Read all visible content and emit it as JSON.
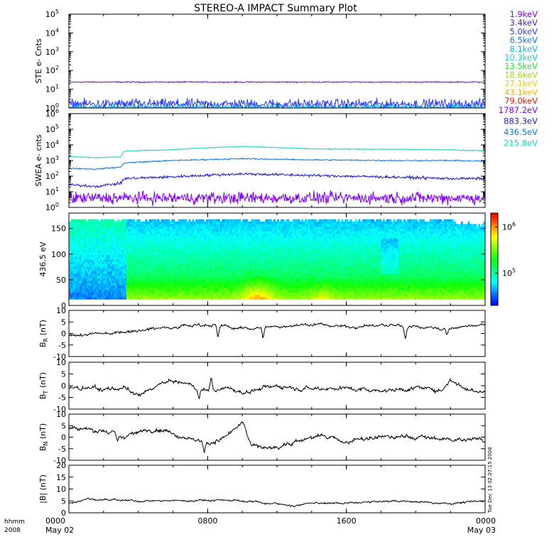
{
  "title": "STEREO-A IMPACT Summary Plot",
  "colors": {
    "spectrum": [
      "#7f00ff",
      "#4b1fd6",
      "#2a3cff",
      "#0a78ff",
      "#00b4ff",
      "#18d3c0",
      "#2fe02a",
      "#9cde12",
      "#e0d400",
      "#ffb000",
      "#e08000",
      "#e01e00"
    ]
  },
  "x_axis": {
    "range_hours": [
      0,
      24
    ],
    "tick_hours": [
      0,
      8,
      16,
      24
    ],
    "tick_labels": [
      "0000",
      "0800",
      "1600",
      "0000"
    ],
    "date_labels": [
      "May 02",
      "",
      "",
      "May 03"
    ],
    "left_label_1": "hhmm",
    "left_label_2": "2008"
  },
  "timestamp": "Tue Dec 13 02:07:15 2008",
  "chart_data": [
    {
      "type": "line",
      "name": "ste",
      "ylabel": "STE e- Cnts",
      "ylog": true,
      "ylim": [
        1,
        100000
      ],
      "y_ticks": [
        {
          "v": 1,
          "b": "10",
          "e": "0"
        },
        {
          "v": 10,
          "b": "10",
          "e": "1"
        },
        {
          "v": 100,
          "b": "10",
          "e": "2"
        },
        {
          "v": 1000,
          "b": "10",
          "e": "3"
        },
        {
          "v": 10000,
          "b": "10",
          "e": "4"
        },
        {
          "v": 100000,
          "b": "10",
          "e": "5"
        }
      ],
      "legend": [
        {
          "label": "1.9keV",
          "color": "#7f00ff"
        },
        {
          "label": "3.4keV",
          "color": "#4b1fd6"
        },
        {
          "label": "5.0keV",
          "color": "#2a3cff"
        },
        {
          "label": "6.5keV",
          "color": "#0a78ff"
        },
        {
          "label": "8.1keV",
          "color": "#00b4ff"
        },
        {
          "label": "10.3keV",
          "color": "#18d3c0"
        },
        {
          "label": "13.5keV",
          "color": "#2fe02a"
        },
        {
          "label": "18.6keV",
          "color": "#9cde12"
        },
        {
          "label": "27.1keV",
          "color": "#e0d400"
        },
        {
          "label": "43.1keV",
          "color": "#ffb000"
        },
        {
          "label": "79.0keV",
          "color": "#e01e00"
        }
      ],
      "series": [
        {
          "color": "#7f00ff",
          "base": [
            [
              0,
              24
            ],
            [
              24,
              24
            ]
          ],
          "noise_log": 0.03
        },
        {
          "color": "#2a3cff",
          "base": [
            [
              0,
              1.6
            ],
            [
              24,
              1.6
            ]
          ],
          "noise_log": 0.25
        },
        {
          "color": "#00b4ff",
          "base": [
            [
              0,
              1.1
            ],
            [
              24,
              1.1
            ]
          ],
          "noise_log": 0.12
        }
      ]
    },
    {
      "type": "line",
      "name": "swea",
      "ylabel": "SWEA e- cnts",
      "ylog": true,
      "ylim": [
        1,
        1000000
      ],
      "y_ticks": [
        {
          "v": 1,
          "b": "10",
          "e": "0"
        },
        {
          "v": 10,
          "b": "10",
          "e": "1"
        },
        {
          "v": 100,
          "b": "10",
          "e": "2"
        },
        {
          "v": 1000,
          "b": "10",
          "e": "3"
        },
        {
          "v": 10000,
          "b": "10",
          "e": "4"
        },
        {
          "v": 100000,
          "b": "10",
          "e": "5"
        },
        {
          "v": 1000000,
          "b": "10",
          "e": "6"
        }
      ],
      "legend": [
        {
          "label": "1787.2eV",
          "color": "#7f00ff"
        },
        {
          "label": "883.3eV",
          "color": "#2222cc"
        },
        {
          "label": "436.5eV",
          "color": "#0a78ff"
        },
        {
          "label": "215.8eV",
          "color": "#18d3c0"
        }
      ],
      "series": [
        {
          "color": "#18d3c0",
          "base": [
            [
              0,
              1800
            ],
            [
              1.6,
              1500
            ],
            [
              3,
              1800
            ],
            [
              3.2,
              4000
            ],
            [
              6,
              5000
            ],
            [
              10,
              8000
            ],
            [
              14,
              5500
            ],
            [
              19,
              5200
            ],
            [
              22,
              4800
            ],
            [
              24,
              4200
            ]
          ],
          "noise_log": 0.03
        },
        {
          "color": "#0a78ff",
          "base": [
            [
              0,
              320
            ],
            [
              1.6,
              280
            ],
            [
              3,
              380
            ],
            [
              3.2,
              700
            ],
            [
              6,
              1000
            ],
            [
              10,
              1300
            ],
            [
              14,
              1100
            ],
            [
              19,
              1000
            ],
            [
              22,
              1000
            ],
            [
              24,
              900
            ]
          ],
          "noise_log": 0.04
        },
        {
          "color": "#2222cc",
          "base": [
            [
              0,
              28
            ],
            [
              1.6,
              22
            ],
            [
              3,
              35
            ],
            [
              3.2,
              70
            ],
            [
              6,
              90
            ],
            [
              10,
              140
            ],
            [
              14,
              110
            ],
            [
              19,
              85
            ],
            [
              22,
              70
            ],
            [
              24,
              70
            ]
          ],
          "noise_log": 0.08
        },
        {
          "color": "#7f00ff",
          "base": [
            [
              0,
              4
            ],
            [
              24,
              4
            ]
          ],
          "noise_log": 0.35
        }
      ]
    },
    {
      "type": "heatmap",
      "name": "spec",
      "ylabel": "436.5 eV",
      "ylim": [
        0,
        180
      ],
      "y_ticks": [
        0,
        50,
        100,
        150
      ],
      "cbar_ticks": [
        {
          "v": 100000,
          "b": "10",
          "e": "5"
        },
        {
          "v": 1000000,
          "b": "10",
          "e": "6"
        }
      ],
      "cbar_range": [
        20000,
        2000000
      ]
    },
    {
      "type": "line",
      "name": "br",
      "ylabel_main": "B",
      "ylabel_sub": "R",
      "ylabel_unit": " (nT)",
      "ylim": [
        -10,
        10
      ],
      "y_ticks": [
        -10,
        -5,
        0,
        5,
        10
      ],
      "series": [
        {
          "color": "#000000",
          "base": [
            [
              0,
              -1
            ],
            [
              2,
              0
            ],
            [
              4,
              1.5
            ],
            [
              6,
              3
            ],
            [
              8,
              4
            ],
            [
              10,
              2
            ],
            [
              12,
              3
            ],
            [
              14,
              4
            ],
            [
              16,
              3
            ],
            [
              18,
              3.5
            ],
            [
              20,
              3
            ],
            [
              22,
              2
            ],
            [
              24,
              4
            ]
          ],
          "noise": 1.0,
          "dips": [
            [
              8.6,
              -5
            ],
            [
              11.2,
              -4
            ],
            [
              19.4,
              -5
            ],
            [
              21.8,
              -3
            ]
          ]
        }
      ]
    },
    {
      "type": "line",
      "name": "bt",
      "ylabel_main": "B",
      "ylabel_sub": "T",
      "ylabel_unit": " (nT)",
      "ylim": [
        -10,
        10
      ],
      "y_ticks": [
        -10,
        -5,
        0,
        5,
        10
      ],
      "series": [
        {
          "color": "#000000",
          "base": [
            [
              0,
              -1
            ],
            [
              2,
              -1.5
            ],
            [
              3.2,
              -1
            ],
            [
              4,
              -5
            ],
            [
              5,
              0
            ],
            [
              6,
              2
            ],
            [
              8,
              -2
            ],
            [
              9,
              -1
            ],
            [
              10,
              -3
            ],
            [
              12,
              0
            ],
            [
              14,
              -1
            ],
            [
              16,
              -1
            ],
            [
              18,
              -2
            ],
            [
              20,
              -1
            ],
            [
              21.5,
              -2
            ],
            [
              22,
              3
            ],
            [
              23,
              -2
            ],
            [
              24,
              -2
            ]
          ],
          "noise": 1.3,
          "dips": [
            [
              8.2,
              5
            ],
            [
              7.5,
              -4
            ]
          ]
        }
      ]
    },
    {
      "type": "line",
      "name": "bn",
      "ylabel_main": "B",
      "ylabel_sub": "N",
      "ylabel_unit": " (nT)",
      "ylim": [
        -10,
        10
      ],
      "y_ticks": [
        -10,
        -5,
        0,
        5,
        10
      ],
      "series": [
        {
          "color": "#000000",
          "base": [
            [
              0,
              4
            ],
            [
              2,
              3
            ],
            [
              3,
              0
            ],
            [
              5,
              4
            ],
            [
              6,
              2
            ],
            [
              8,
              -3
            ],
            [
              9,
              0
            ],
            [
              10,
              6
            ],
            [
              10.5,
              -3
            ],
            [
              11.5,
              -5
            ],
            [
              13,
              -2
            ],
            [
              14,
              0
            ],
            [
              15,
              0
            ],
            [
              16,
              -2
            ],
            [
              18,
              0
            ],
            [
              20,
              0
            ],
            [
              22,
              -1
            ],
            [
              24,
              -1
            ]
          ],
          "noise": 1.4,
          "dips": [
            [
              2.8,
              -3
            ],
            [
              7.8,
              -5
            ]
          ]
        }
      ]
    },
    {
      "type": "line",
      "name": "btot",
      "ylabel_main": "|B|",
      "ylabel_sub": "",
      "ylabel_unit": " (nT)",
      "ylim": [
        0,
        20
      ],
      "y_ticks": [
        0,
        5,
        10,
        15,
        20
      ],
      "series": [
        {
          "color": "#000000",
          "base": [
            [
              0,
              4
            ],
            [
              1,
              6
            ],
            [
              3,
              5
            ],
            [
              6,
              5
            ],
            [
              9,
              5.5
            ],
            [
              11,
              4.5
            ],
            [
              13,
              3
            ],
            [
              14,
              4
            ],
            [
              16,
              4
            ],
            [
              19,
              5
            ],
            [
              22,
              4
            ],
            [
              24,
              5
            ]
          ],
          "noise": 0.6,
          "dips": []
        }
      ]
    }
  ]
}
